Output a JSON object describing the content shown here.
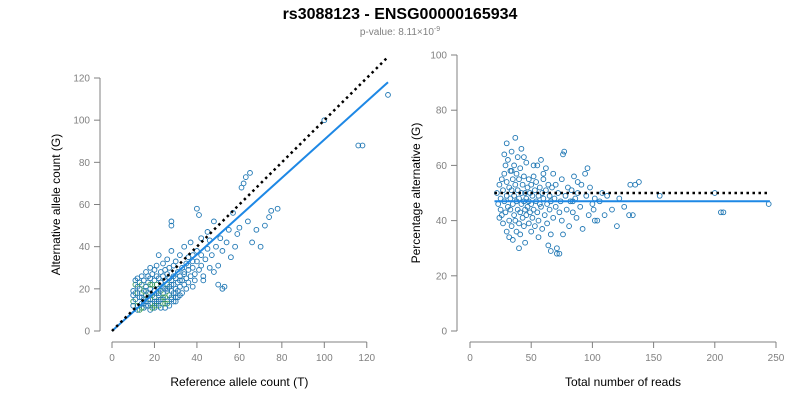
{
  "figure": {
    "title": "rs3088123 - ENSG00000165934",
    "pvalue_prefix": "p-value: 8.11×10",
    "pvalue_exponent": "-9"
  },
  "chart_data": [
    {
      "type": "scatter",
      "xlabel": "Reference allele count (T)",
      "ylabel": "Alternative allele count (G)",
      "xlim": [
        0,
        130
      ],
      "ylim": [
        0,
        120
      ],
      "xticks": [
        0,
        20,
        40,
        60,
        80,
        100,
        120
      ],
      "yticks": [
        0,
        20,
        40,
        60,
        80,
        100,
        120
      ],
      "grid": false,
      "colors": {
        "points": "#1f77b4",
        "points_alt": "#3a9a5a",
        "fit": "#1e88e5",
        "reference": "#000000"
      },
      "reference_line": {
        "style": "dotted",
        "x": [
          0,
          130
        ],
        "y": [
          0,
          130
        ]
      },
      "fit_line": {
        "style": "solid",
        "x": [
          0,
          130
        ],
        "y": [
          0,
          118
        ]
      },
      "points": [
        [
          10,
          14
        ],
        [
          10,
          17
        ],
        [
          10,
          19
        ],
        [
          11,
          22
        ],
        [
          11,
          15
        ],
        [
          11,
          24
        ],
        [
          12,
          18
        ],
        [
          12,
          21
        ],
        [
          12,
          25
        ],
        [
          12,
          12
        ],
        [
          13,
          16
        ],
        [
          13,
          20
        ],
        [
          13,
          23
        ],
        [
          14,
          13
        ],
        [
          14,
          18
        ],
        [
          14,
          22
        ],
        [
          14,
          26
        ],
        [
          15,
          15
        ],
        [
          15,
          19
        ],
        [
          15,
          24
        ],
        [
          15,
          11
        ],
        [
          16,
          17
        ],
        [
          16,
          21
        ],
        [
          16,
          14
        ],
        [
          16,
          28
        ],
        [
          17,
          12
        ],
        [
          17,
          18
        ],
        [
          17,
          23
        ],
        [
          17,
          26
        ],
        [
          18,
          10
        ],
        [
          18,
          15
        ],
        [
          18,
          20
        ],
        [
          18,
          25
        ],
        [
          18,
          30
        ],
        [
          19,
          13
        ],
        [
          19,
          17
        ],
        [
          19,
          22
        ],
        [
          19,
          27
        ],
        [
          20,
          11
        ],
        [
          20,
          16
        ],
        [
          20,
          19
        ],
        [
          20,
          24
        ],
        [
          20,
          29
        ],
        [
          21,
          14
        ],
        [
          21,
          18
        ],
        [
          21,
          22
        ],
        [
          21,
          26
        ],
        [
          21,
          31
        ],
        [
          22,
          12
        ],
        [
          22,
          17
        ],
        [
          22,
          20
        ],
        [
          22,
          25
        ],
        [
          22,
          36
        ],
        [
          23,
          15
        ],
        [
          23,
          19
        ],
        [
          23,
          23
        ],
        [
          23,
          28
        ],
        [
          24,
          13
        ],
        [
          24,
          18
        ],
        [
          24,
          21
        ],
        [
          24,
          26
        ],
        [
          24,
          32
        ],
        [
          25,
          11
        ],
        [
          25,
          16
        ],
        [
          25,
          20
        ],
        [
          25,
          24
        ],
        [
          25,
          29
        ],
        [
          26,
          14
        ],
        [
          26,
          19
        ],
        [
          26,
          22
        ],
        [
          26,
          27
        ],
        [
          26,
          34
        ],
        [
          27,
          17
        ],
        [
          27,
          21
        ],
        [
          27,
          25
        ],
        [
          27,
          30
        ],
        [
          28,
          15
        ],
        [
          28,
          19
        ],
        [
          28,
          24
        ],
        [
          28,
          38
        ],
        [
          28,
          50
        ],
        [
          28,
          52
        ],
        [
          29,
          18
        ],
        [
          29,
          22
        ],
        [
          29,
          26
        ],
        [
          29,
          31
        ],
        [
          30,
          16
        ],
        [
          30,
          20
        ],
        [
          30,
          25
        ],
        [
          30,
          33
        ],
        [
          31,
          19
        ],
        [
          31,
          23
        ],
        [
          31,
          28
        ],
        [
          32,
          21
        ],
        [
          32,
          26
        ],
        [
          32,
          36
        ],
        [
          33,
          18
        ],
        [
          33,
          24
        ],
        [
          33,
          30
        ],
        [
          34,
          22
        ],
        [
          34,
          27
        ],
        [
          34,
          40
        ],
        [
          35,
          20
        ],
        [
          35,
          25
        ],
        [
          35,
          32
        ],
        [
          36,
          23
        ],
        [
          36,
          29
        ],
        [
          36,
          35
        ],
        [
          37,
          26
        ],
        [
          37,
          42
        ],
        [
          38,
          21
        ],
        [
          38,
          30
        ],
        [
          38,
          36
        ],
        [
          39,
          27
        ],
        [
          39,
          24
        ],
        [
          40,
          33
        ],
        [
          40,
          38
        ],
        [
          40,
          58
        ],
        [
          41,
          29
        ],
        [
          41,
          55
        ],
        [
          42,
          31
        ],
        [
          42,
          36
        ],
        [
          42,
          44
        ],
        [
          43,
          26
        ],
        [
          43,
          24
        ],
        [
          44,
          34
        ],
        [
          45,
          39
        ],
        [
          45,
          47
        ],
        [
          46,
          30
        ],
        [
          46,
          43
        ],
        [
          47,
          36
        ],
        [
          48,
          28
        ],
        [
          48,
          52
        ],
        [
          49,
          40
        ],
        [
          50,
          22
        ],
        [
          50,
          31
        ],
        [
          51,
          44
        ],
        [
          52,
          20
        ],
        [
          52,
          38
        ],
        [
          53,
          21
        ],
        [
          54,
          42
        ],
        [
          55,
          48
        ],
        [
          56,
          35
        ],
        [
          57,
          56
        ],
        [
          58,
          40
        ],
        [
          59,
          46
        ],
        [
          60,
          49
        ],
        [
          61,
          68
        ],
        [
          62,
          70
        ],
        [
          63,
          73
        ],
        [
          64,
          52
        ],
        [
          65,
          75
        ],
        [
          66,
          42
        ],
        [
          68,
          48
        ],
        [
          70,
          40
        ],
        [
          72,
          50
        ],
        [
          74,
          54
        ],
        [
          75,
          57
        ],
        [
          78,
          58
        ],
        [
          100,
          100
        ],
        [
          116,
          88
        ],
        [
          118,
          88
        ],
        [
          130,
          112
        ],
        [
          14,
          16
        ],
        [
          16,
          19
        ],
        [
          18,
          22
        ],
        [
          20,
          14
        ],
        [
          22,
          18
        ],
        [
          24,
          16
        ],
        [
          26,
          20
        ],
        [
          28,
          22
        ],
        [
          30,
          18
        ],
        [
          32,
          24
        ],
        [
          34,
          28
        ],
        [
          36,
          31
        ],
        [
          38,
          33
        ],
        [
          12,
          10
        ],
        [
          14,
          11
        ],
        [
          16,
          12
        ],
        [
          18,
          13
        ],
        [
          20,
          12
        ],
        [
          22,
          14
        ],
        [
          24,
          15
        ],
        [
          26,
          13
        ],
        [
          28,
          16
        ],
        [
          30,
          14
        ],
        [
          32,
          17
        ],
        [
          10,
          12
        ],
        [
          11,
          18
        ],
        [
          13,
          10
        ],
        [
          15,
          13
        ],
        [
          17,
          15
        ],
        [
          19,
          11
        ],
        [
          21,
          13
        ],
        [
          23,
          11
        ],
        [
          25,
          13
        ],
        [
          27,
          12
        ],
        [
          29,
          14
        ],
        [
          31,
          16
        ]
      ]
    },
    {
      "type": "scatter",
      "xlabel": "Total number of reads",
      "ylabel": "Percentage alternative (G)",
      "xlim": [
        0,
        250
      ],
      "ylim": [
        0,
        100
      ],
      "xticks": [
        0,
        50,
        100,
        150,
        200,
        250
      ],
      "yticks": [
        0,
        20,
        40,
        60,
        80,
        100
      ],
      "grid": false,
      "colors": {
        "points": "#1f77b4",
        "fit": "#1e88e5",
        "reference": "#000000"
      },
      "reference_line": {
        "style": "dotted",
        "x": [
          20,
          245
        ],
        "y": [
          50,
          50
        ]
      },
      "fit_line": {
        "style": "solid",
        "x": [
          20,
          245
        ],
        "y": [
          47,
          47
        ]
      },
      "points": [
        [
          22,
          50
        ],
        [
          23,
          46
        ],
        [
          24,
          53
        ],
        [
          25,
          44
        ],
        [
          25,
          48
        ],
        [
          26,
          55
        ],
        [
          26,
          42
        ],
        [
          27,
          51
        ],
        [
          27,
          39
        ],
        [
          28,
          57
        ],
        [
          28,
          47
        ],
        [
          29,
          43
        ],
        [
          29,
          60
        ],
        [
          30,
          49
        ],
        [
          30,
          36
        ],
        [
          30,
          54
        ],
        [
          31,
          45
        ],
        [
          31,
          62
        ],
        [
          32,
          40
        ],
        [
          32,
          52
        ],
        [
          32,
          34
        ],
        [
          33,
          48
        ],
        [
          33,
          58
        ],
        [
          33,
          44
        ],
        [
          34,
          51
        ],
        [
          34,
          38
        ],
        [
          34,
          65
        ],
        [
          35,
          46
        ],
        [
          35,
          55
        ],
        [
          35,
          33
        ],
        [
          36,
          42
        ],
        [
          36,
          49
        ],
        [
          36,
          60
        ],
        [
          37,
          53
        ],
        [
          37,
          40
        ],
        [
          37,
          70
        ],
        [
          38,
          47
        ],
        [
          38,
          36
        ],
        [
          38,
          57
        ],
        [
          39,
          44
        ],
        [
          39,
          51
        ],
        [
          39,
          63
        ],
        [
          40,
          39
        ],
        [
          40,
          48
        ],
        [
          40,
          55
        ],
        [
          41,
          43
        ],
        [
          41,
          35
        ],
        [
          41,
          59
        ],
        [
          42,
          50
        ],
        [
          42,
          46
        ],
        [
          42,
          66
        ],
        [
          43,
          41
        ],
        [
          43,
          53
        ],
        [
          44,
          47
        ],
        [
          44,
          38
        ],
        [
          44,
          56
        ],
        [
          45,
          44
        ],
        [
          45,
          50
        ],
        [
          45,
          32
        ],
        [
          46,
          48
        ],
        [
          46,
          42
        ],
        [
          46,
          61
        ],
        [
          47,
          52
        ],
        [
          47,
          45
        ],
        [
          48,
          39
        ],
        [
          48,
          55
        ],
        [
          48,
          47
        ],
        [
          49,
          43
        ],
        [
          49,
          50
        ],
        [
          50,
          36
        ],
        [
          50,
          53
        ],
        [
          50,
          46
        ],
        [
          51,
          49
        ],
        [
          51,
          41
        ],
        [
          52,
          56
        ],
        [
          52,
          44
        ],
        [
          53,
          51
        ],
        [
          53,
          38
        ],
        [
          54,
          47
        ],
        [
          54,
          54
        ],
        [
          55,
          43
        ],
        [
          55,
          60
        ],
        [
          56,
          49
        ],
        [
          56,
          40
        ],
        [
          57,
          52
        ],
        [
          57,
          46
        ],
        [
          58,
          45
        ],
        [
          58,
          62
        ],
        [
          59,
          50
        ],
        [
          59,
          37
        ],
        [
          60,
          48
        ],
        [
          60,
          55
        ],
        [
          61,
          42
        ],
        [
          62,
          51
        ],
        [
          62,
          59
        ],
        [
          63,
          46
        ],
        [
          63,
          39
        ],
        [
          64,
          53
        ],
        [
          65,
          44
        ],
        [
          65,
          49
        ],
        [
          66,
          47
        ],
        [
          66,
          35
        ],
        [
          67,
          52
        ],
        [
          68,
          41
        ],
        [
          68,
          57
        ],
        [
          69,
          48
        ],
        [
          70,
          45
        ],
        [
          70,
          53
        ],
        [
          71,
          28
        ],
        [
          71,
          30
        ],
        [
          72,
          50
        ],
        [
          73,
          43
        ],
        [
          74,
          47
        ],
        [
          75,
          55
        ],
        [
          75,
          40
        ],
        [
          76,
          64
        ],
        [
          77,
          65
        ],
        [
          78,
          49
        ],
        [
          79,
          44
        ],
        [
          80,
          52
        ],
        [
          81,
          38
        ],
        [
          82,
          47
        ],
        [
          83,
          51
        ],
        [
          84,
          43
        ],
        [
          85,
          56
        ],
        [
          86,
          48
        ],
        [
          87,
          41
        ],
        [
          88,
          50
        ],
        [
          90,
          45
        ],
        [
          91,
          53
        ],
        [
          92,
          37
        ],
        [
          94,
          57
        ],
        [
          95,
          49
        ],
        [
          96,
          59
        ],
        [
          97,
          42
        ],
        [
          98,
          52
        ],
        [
          100,
          46
        ],
        [
          101,
          44
        ],
        [
          102,
          48
        ],
        [
          104,
          40
        ],
        [
          106,
          47
        ],
        [
          108,
          50
        ],
        [
          110,
          42
        ],
        [
          112,
          49
        ],
        [
          120,
          38
        ],
        [
          122,
          48
        ],
        [
          130,
          42
        ],
        [
          131,
          53
        ],
        [
          133,
          42
        ],
        [
          135,
          53
        ],
        [
          138,
          54
        ],
        [
          155,
          49
        ],
        [
          200,
          50
        ],
        [
          205,
          43
        ],
        [
          207,
          43
        ],
        [
          244,
          46
        ],
        [
          24,
          41
        ],
        [
          28,
          64
        ],
        [
          30,
          68
        ],
        [
          34,
          58
        ],
        [
          40,
          30
        ],
        [
          44,
          63
        ],
        [
          52,
          60
        ],
        [
          56,
          34
        ],
        [
          60,
          57
        ],
        [
          64,
          31
        ],
        [
          66,
          29
        ],
        [
          73,
          28
        ],
        [
          76,
          35
        ],
        [
          84,
          47
        ],
        [
          88,
          54
        ],
        [
          102,
          40
        ],
        [
          116,
          44
        ],
        [
          126,
          45
        ]
      ]
    }
  ]
}
